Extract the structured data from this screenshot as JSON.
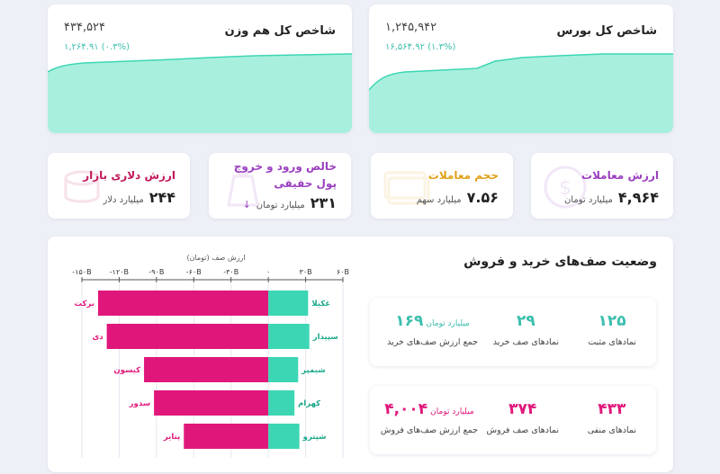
{
  "index_cards": [
    {
      "title": "شاخص کل بورس",
      "value": "۱,۲۴۵,۹۴۲",
      "change": "۱۶,۵۶۴.۹۲ (۱.۳%)"
    },
    {
      "title": "شاخص کل هم وزن",
      "value": "۴۳۴,۵۲۴",
      "change": "۱,۲۶۴.۹۱ (۰.۳%)"
    }
  ],
  "stat_cards": [
    {
      "title": "ارزش معاملات",
      "value": "۴,۹۶۴",
      "unit": "میلیارد تومان",
      "color": "#9a3fbf"
    },
    {
      "title": "حجم معاملات",
      "value": "۷.۵۶",
      "unit": "میلیارد سهم",
      "color": "#e0a21a"
    },
    {
      "title": "خالص ورود و خروج پول حقیقی",
      "value": "۲۳۱",
      "unit": "میلیارد تومان",
      "color": "#9a3fbf",
      "arrow": "↓"
    },
    {
      "title": "ارزش دلاری بازار",
      "value": "۲۴۴",
      "unit": "میلیارد دلار",
      "color": "#c2185b"
    }
  ],
  "queue_panel": {
    "title": "وضعیت صف‌های خرید و فروش",
    "buy": {
      "positive_count": "۱۲۵",
      "positive_label": "نمادهای مثبت",
      "queue_count": "۲۹",
      "queue_label": "نمادهای صف خرید",
      "total_value": "۱۶۹",
      "total_unit": "میلیارد تومان",
      "total_label": "جمع ارزش صف‌های خرید"
    },
    "sell": {
      "negative_count": "۴۳۳",
      "negative_label": "نمادهای منفی",
      "queue_count": "۳۷۴",
      "queue_label": "نمادهای صف فروش",
      "total_value": "۴,۰۰۴",
      "total_unit": "میلیارد تومان",
      "total_label": "جمع ارزش صف‌های فروش"
    }
  },
  "chart_data": {
    "type": "bar",
    "title": "ارزش صف (تومان)",
    "xlim": [
      -150,
      60
    ],
    "tick_values": [
      -150,
      -120,
      -90,
      -60,
      -30,
      0,
      30,
      60
    ],
    "tick_labels": [
      "-۱۵۰B",
      "-۱۲۰B",
      "-۹۰B",
      "-۶۰B",
      "-۳۰B",
      "۰",
      "۳۰B",
      "۶۰B"
    ],
    "buy_color": "#3dd6b4",
    "sell_color": "#e0177b",
    "rows": [
      {
        "buy_symbol": "غکیلا",
        "buy_value": 32,
        "sell_symbol": "برکت",
        "sell_value": -137
      },
      {
        "buy_symbol": "سپیدار",
        "buy_value": 33,
        "sell_symbol": "دی",
        "sell_value": -130
      },
      {
        "buy_symbol": "شیمپر",
        "buy_value": 24,
        "sell_symbol": "کیسون",
        "sell_value": -100
      },
      {
        "buy_symbol": "کهرام",
        "buy_value": 21,
        "sell_symbol": "سدور",
        "sell_value": -92
      },
      {
        "buy_symbol": "شپترو",
        "buy_value": 25,
        "sell_symbol": "پتایر",
        "sell_value": -68
      }
    ]
  }
}
